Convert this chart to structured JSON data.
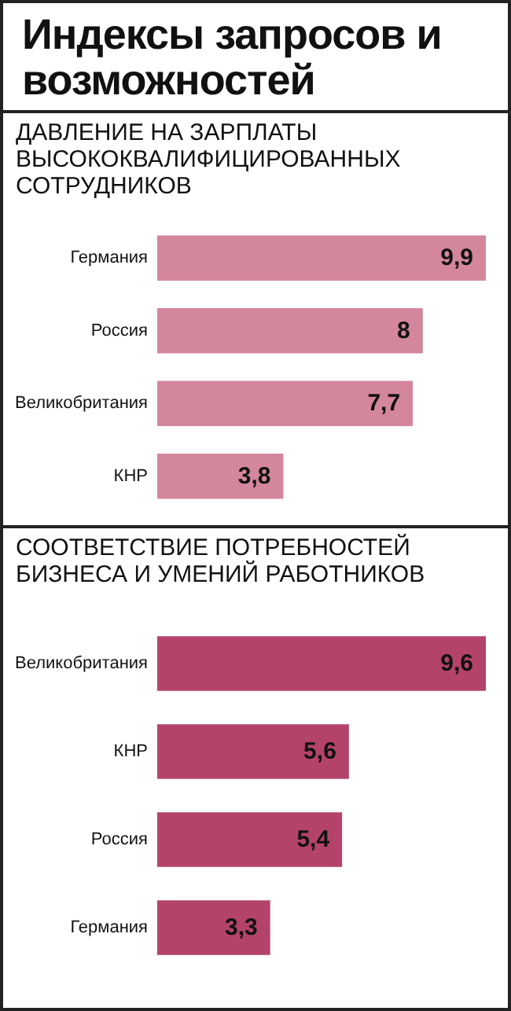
{
  "chart_data": [
    {
      "type": "bar",
      "title": "Индексы запросов и возможностей",
      "subtitle": "ДАВЛЕНИЕ НА ЗАРПЛАТЫ ВЫСОКОКВАЛИФИЦИРОВАННЫХ СОТРУДНИКОВ",
      "orientation": "horizontal",
      "categories": [
        "Германия",
        "Россия",
        "Великобритания",
        "КНР"
      ],
      "values": [
        9.9,
        8,
        7.7,
        3.8
      ],
      "value_labels": [
        "9,9",
        "8",
        "7,7",
        "3,8"
      ],
      "color": "#d4869d"
    },
    {
      "type": "bar",
      "subtitle": "СООТВЕТСТВИЕ ПОТРЕБНОСТЕЙ БИЗНЕСА И УМЕНИЙ РАБОТНИКОВ",
      "orientation": "horizontal",
      "categories": [
        "Великобритания",
        "КНР",
        "Россия",
        "Германия"
      ],
      "values": [
        9.6,
        5.6,
        5.4,
        3.3
      ],
      "value_labels": [
        "9,6",
        "5,6",
        "5,4",
        "3,3"
      ],
      "color": "#b4436b"
    }
  ]
}
